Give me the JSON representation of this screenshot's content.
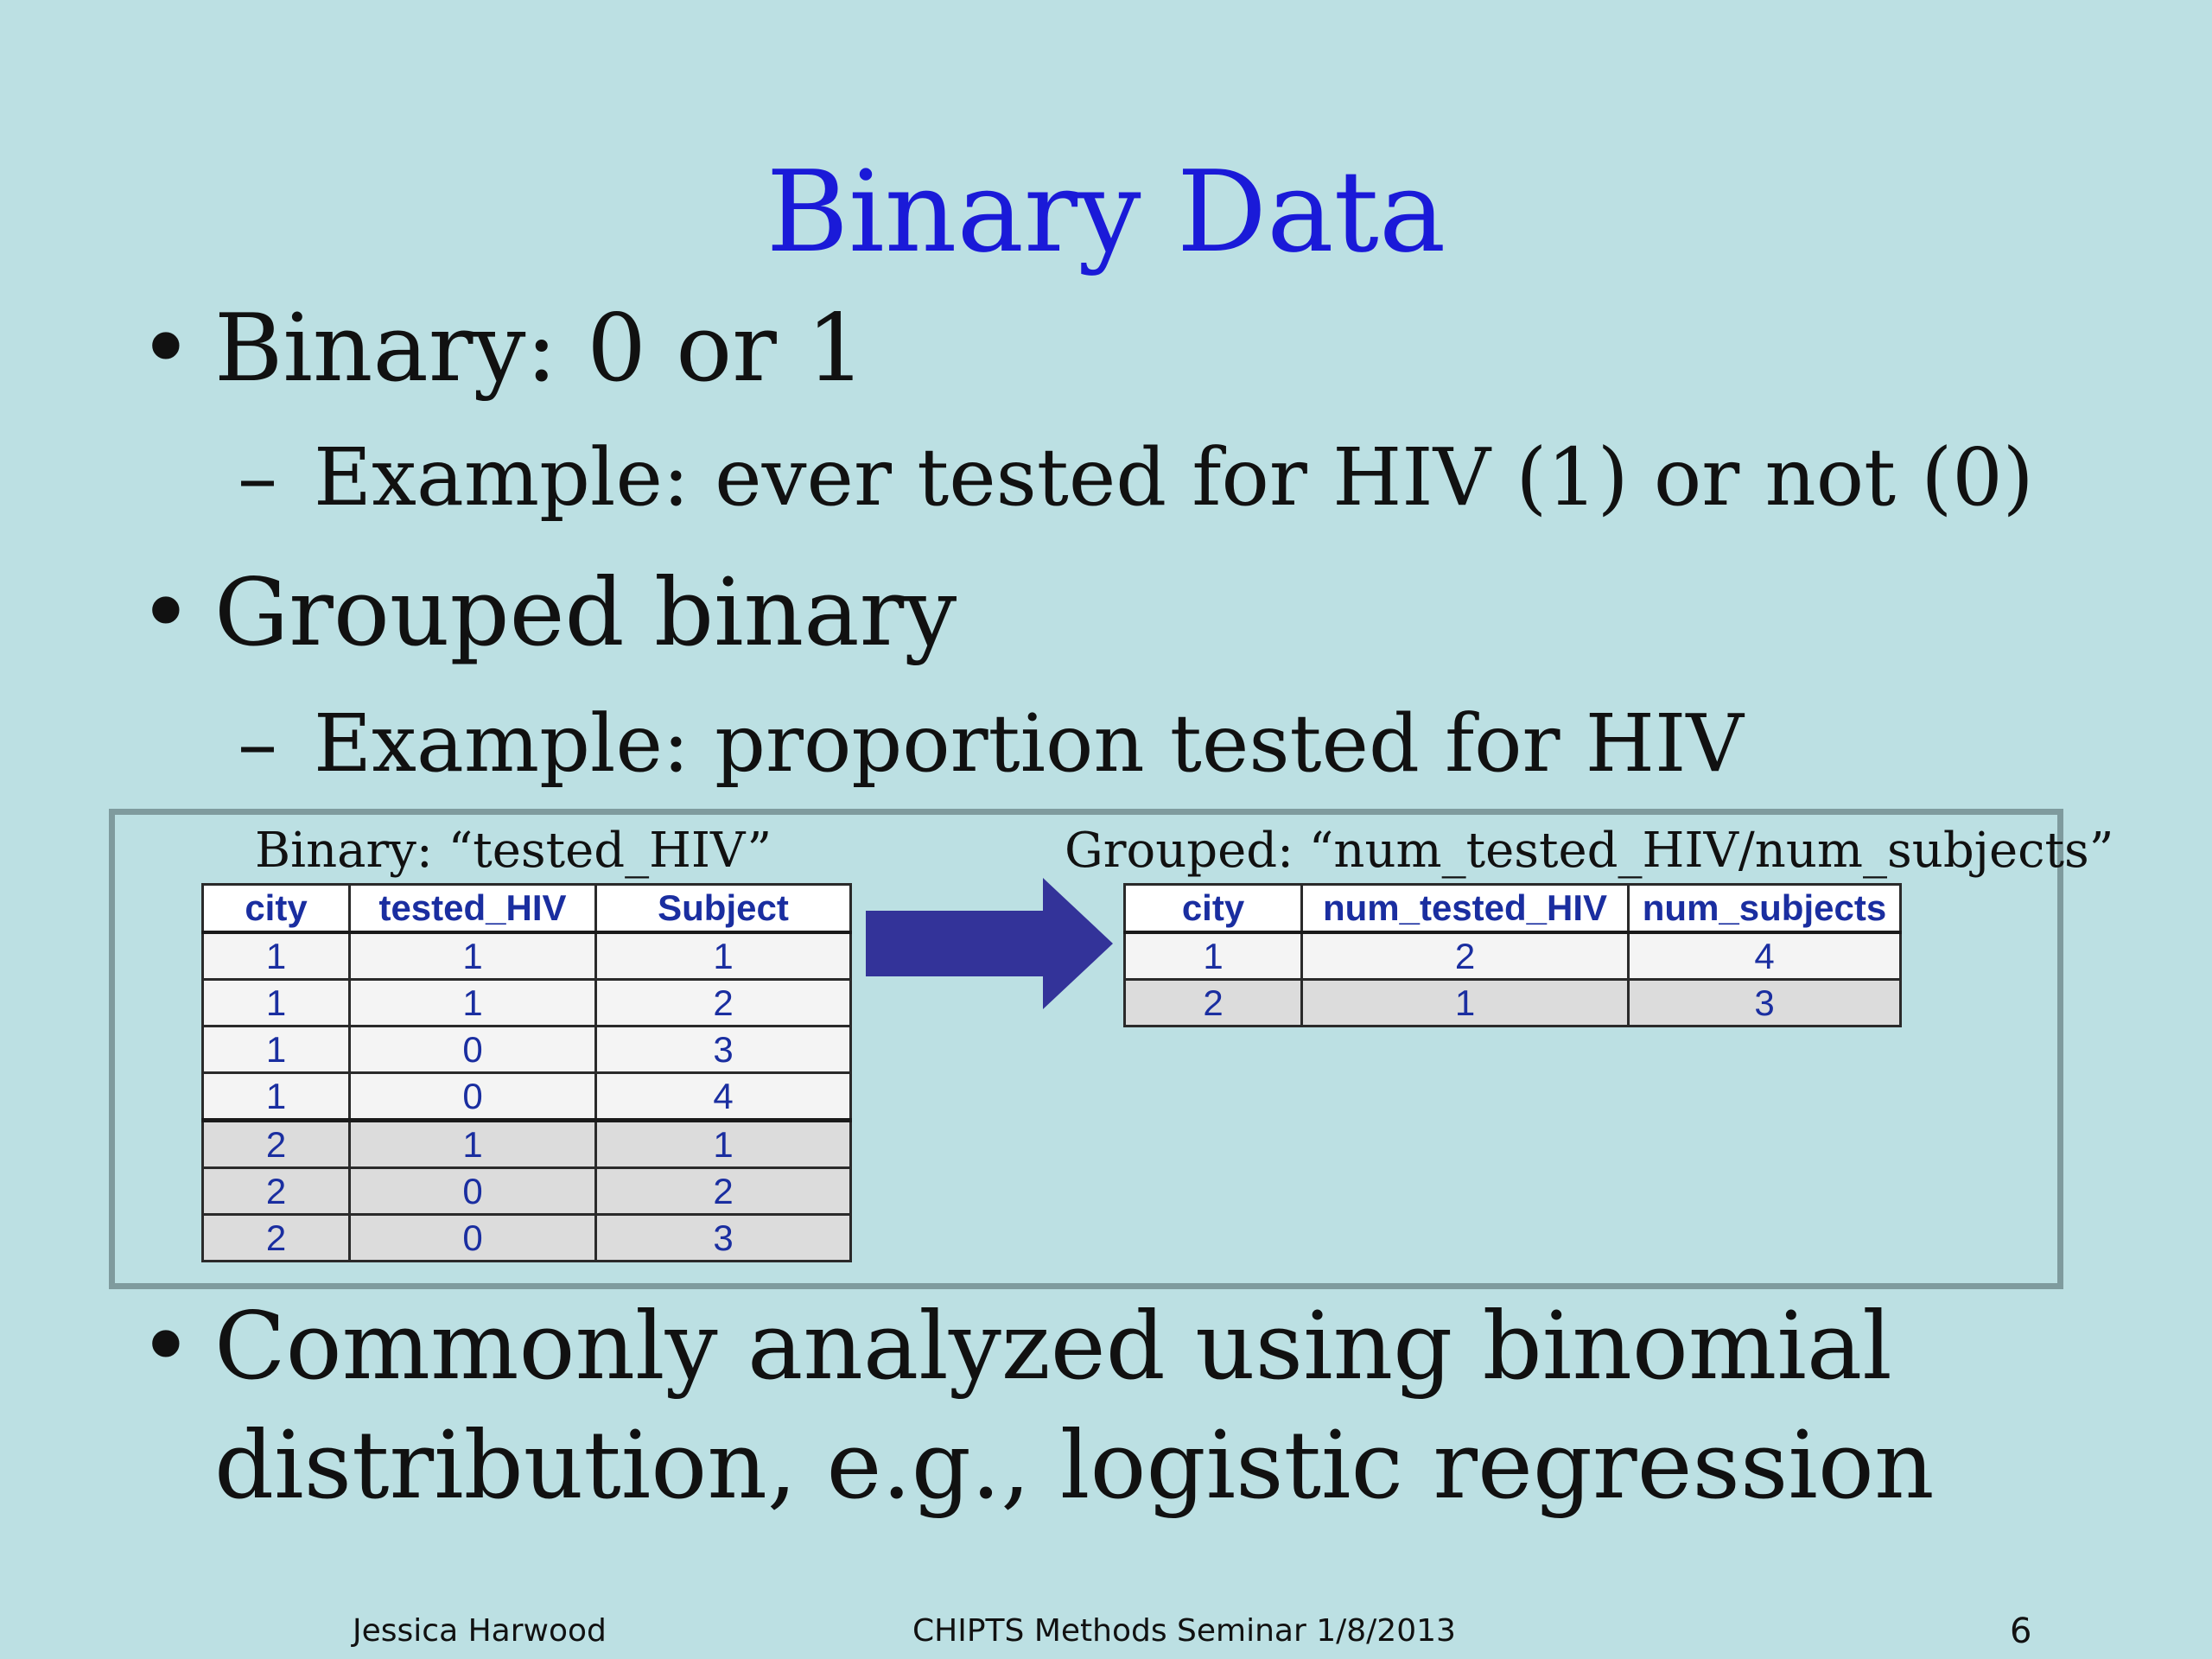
{
  "title": "Binary Data",
  "bullets": {
    "b1": "Binary: 0 or 1",
    "b1_sub": "Example: ever tested for HIV (1) or not (0)",
    "b2": "Grouped binary",
    "b2_sub": "Example: proportion tested for HIV",
    "b3": "Commonly analyzed using binomial distribution, e.g., logistic regression",
    "bullet_symbol": "•",
    "sub_symbol": "–"
  },
  "binary_table": {
    "caption": "Binary: “tested_HIV”",
    "headers": [
      "city",
      "tested_HIV",
      "Subject"
    ],
    "rows": [
      [
        "1",
        "1",
        "1"
      ],
      [
        "1",
        "1",
        "2"
      ],
      [
        "1",
        "0",
        "3"
      ],
      [
        "1",
        "0",
        "4"
      ],
      [
        "2",
        "1",
        "1"
      ],
      [
        "2",
        "0",
        "2"
      ],
      [
        "2",
        "0",
        "3"
      ]
    ]
  },
  "arrow_icon": "right-arrow-icon",
  "grouped_table": {
    "caption": "Grouped: “num_tested_HIV/num_subjects”",
    "headers": [
      "city",
      "num_tested_HIV",
      "num_subjects"
    ],
    "rows": [
      [
        "1",
        "2",
        "4"
      ],
      [
        "2",
        "1",
        "3"
      ]
    ]
  },
  "footer": {
    "author": "Jessica Harwood",
    "event": "CHIPTS Methods Seminar 1/8/2013",
    "page_number": "6"
  },
  "colors": {
    "background": "#bce0e3",
    "title": "#1a1ad8",
    "table_text": "#1a2ea0",
    "arrow": "#333399",
    "box_border": "#7f9b9e"
  }
}
